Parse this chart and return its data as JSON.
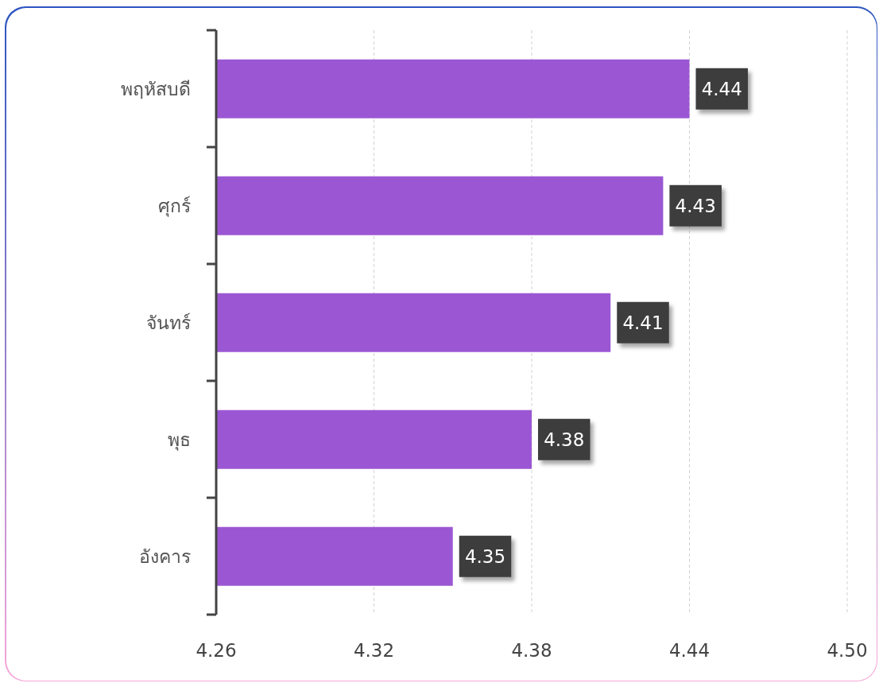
{
  "chart_data": {
    "type": "bar",
    "orientation": "horizontal",
    "categories": [
      "พฤหัสบดี",
      "ศุกร์",
      "จันทร์",
      "พุธ",
      "อังคาร"
    ],
    "values": [
      4.44,
      4.43,
      4.41,
      4.38,
      4.35
    ],
    "color": "#9b57d3",
    "xlim": [
      4.26,
      4.5
    ],
    "xticks": [
      4.26,
      4.32,
      4.38,
      4.44,
      {
        "value": 4.5,
        "label": "4.50"
      }
    ],
    "grid": "x",
    "data_labels": true
  }
}
